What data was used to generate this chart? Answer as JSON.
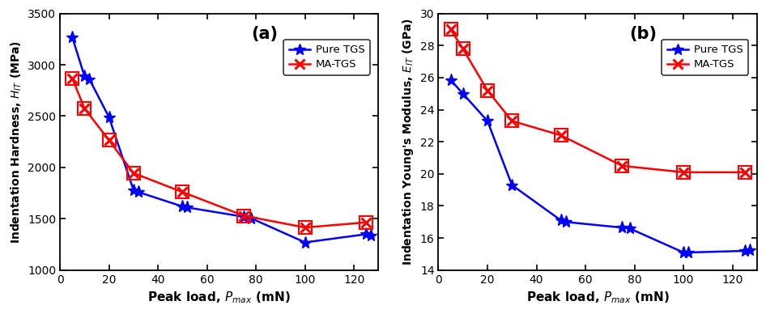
{
  "panel_a": {
    "title": "(a)",
    "xlabel": "Peak load, P\\u2098\\u2090\\u2093 (mN)",
    "ylabel": "Indentation Hardness, H\\u1d35\\u1d40 (MPa)",
    "xlim": [
      0,
      130
    ],
    "ylim": [
      1000,
      3500
    ],
    "xticks": [
      0,
      20,
      40,
      60,
      80,
      100,
      120
    ],
    "yticks": [
      1000,
      1500,
      2000,
      2500,
      3000,
      3500
    ],
    "pure_tgs_x": [
      5,
      10,
      12,
      20,
      30,
      32,
      50,
      52,
      75,
      78,
      100,
      125,
      127
    ],
    "pure_tgs_y": [
      3270,
      2890,
      2860,
      2490,
      1780,
      1760,
      1620,
      1610,
      1520,
      1505,
      1270,
      1350,
      1340
    ],
    "ma_tgs_x": [
      5,
      10,
      20,
      30,
      50,
      75,
      100,
      125
    ],
    "ma_tgs_y": [
      2870,
      2575,
      2265,
      1945,
      1760,
      1530,
      1415,
      1465
    ],
    "pure_tgs_color": "#0000FF",
    "ma_tgs_color": "#FF0000",
    "pure_tgs_label": "Pure TGS",
    "ma_tgs_label": "MA-TGS"
  },
  "panel_b": {
    "title": "(b)",
    "xlabel": "Peak load, P\\u2098\\u2090\\u2093 (mN)",
    "ylabel": "Indentation Young's Modulus, E\\u1d35\\u1d40 (GPa)",
    "xlim": [
      0,
      130
    ],
    "ylim": [
      14,
      30
    ],
    "xticks": [
      0,
      20,
      40,
      60,
      80,
      100,
      120
    ],
    "yticks": [
      14,
      16,
      18,
      20,
      22,
      24,
      26,
      28,
      30
    ],
    "pure_tgs_x": [
      5,
      10,
      20,
      30,
      50,
      52,
      75,
      78,
      100,
      102,
      125,
      127
    ],
    "pure_tgs_y": [
      25.85,
      25.0,
      23.3,
      19.3,
      17.1,
      17.0,
      16.65,
      16.6,
      15.1,
      15.1,
      15.2,
      15.25
    ],
    "ma_tgs_x": [
      5,
      10,
      20,
      30,
      50,
      75,
      100,
      125
    ],
    "ma_tgs_y": [
      29.0,
      27.8,
      25.2,
      23.3,
      22.4,
      20.5,
      20.1,
      20.1
    ],
    "pure_tgs_color": "#0000FF",
    "ma_tgs_color": "#FF0000",
    "pure_tgs_label": "Pure TGS",
    "ma_tgs_label": "MA-TGS"
  },
  "fig_width": 9.46,
  "fig_height": 3.88,
  "dpi": 100
}
